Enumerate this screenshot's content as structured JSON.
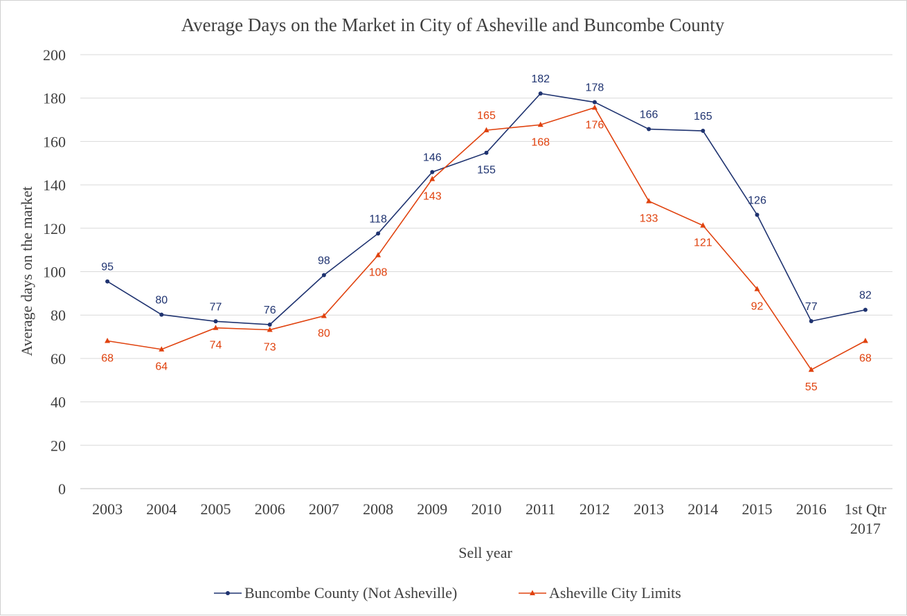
{
  "chart_data": {
    "type": "line",
    "title": "Average Days on the Market in City of Asheville  and Buncombe County",
    "xlabel": "Sell year",
    "ylabel": "Average  days on the market",
    "categories": [
      "2003",
      "2004",
      "2005",
      "2006",
      "2007",
      "2008",
      "2009",
      "2010",
      "2011",
      "2012",
      "2013",
      "2014",
      "2015",
      "2016",
      "1st Qtr\n2017"
    ],
    "ylim": [
      0,
      200
    ],
    "yticks": [
      0,
      20,
      40,
      60,
      80,
      100,
      120,
      140,
      160,
      180,
      200
    ],
    "grid": "horizontal",
    "legend": "bottom",
    "series": [
      {
        "name": "Buncombe County (Not Asheville)",
        "color": "#1f3370",
        "marker": "circle",
        "values": [
          95.5,
          80.2,
          77.1,
          75.6,
          98.4,
          117.6,
          145.9,
          154.8,
          182.1,
          178.1,
          165.7,
          164.9,
          126.2,
          77.2,
          82.4
        ],
        "labels": [
          "95",
          "80",
          "77",
          "76",
          "98",
          "118",
          "146",
          "155",
          "182",
          "178",
          "166",
          "165",
          "126",
          "77",
          "82"
        ],
        "label_pos": [
          "above",
          "above",
          "above",
          "above",
          "above",
          "above",
          "above",
          "below",
          "above",
          "above",
          "above",
          "above",
          "above",
          "above",
          "above"
        ]
      },
      {
        "name": "Asheville City Limits",
        "color": "#e0420e",
        "marker": "triangle",
        "values": [
          68.1,
          64.2,
          74.1,
          73.2,
          79.6,
          107.6,
          142.7,
          165.2,
          167.7,
          175.6,
          132.5,
          121.3,
          92.0,
          54.8,
          68.1
        ],
        "labels": [
          "68",
          "64",
          "74",
          "73",
          "80",
          "108",
          "143",
          "165",
          "168",
          "176",
          "133",
          "121",
          "92",
          "55",
          "68"
        ],
        "label_pos": [
          "below",
          "below",
          "below",
          "below",
          "below",
          "below",
          "below",
          "above",
          "below",
          "below",
          "below",
          "below",
          "below",
          "below",
          "below"
        ]
      }
    ]
  }
}
